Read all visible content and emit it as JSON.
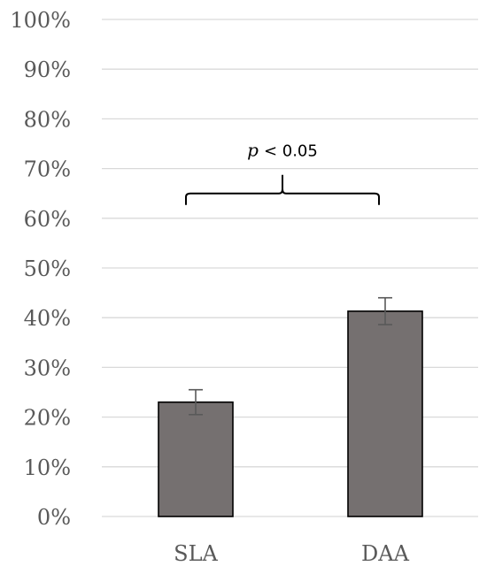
{
  "chart_data": {
    "type": "bar",
    "categories": [
      "SLA",
      "DAA"
    ],
    "values": [
      23,
      41.3
    ],
    "error": [
      2.5,
      2.7
    ],
    "title": "",
    "xlabel": "",
    "ylabel": "",
    "ylim": [
      0,
      100
    ],
    "y_ticks": [
      0,
      10,
      20,
      30,
      40,
      50,
      60,
      70,
      80,
      90,
      100
    ],
    "y_tick_labels": [
      "0%",
      "10%",
      "20%",
      "30%",
      "40%",
      "50%",
      "60%",
      "70%",
      "80%",
      "90%",
      "100%"
    ],
    "grid": true,
    "legend": "none",
    "annotation": {
      "p_symbol": "p",
      "comparison": "< 0.05",
      "bracket_height": 65
    },
    "colors": {
      "bar_fill": "#757070",
      "bar_edge": "#000000",
      "error_bar": "#595959",
      "grid": "#d9d9d9",
      "axis": "#d9d9d9"
    }
  }
}
